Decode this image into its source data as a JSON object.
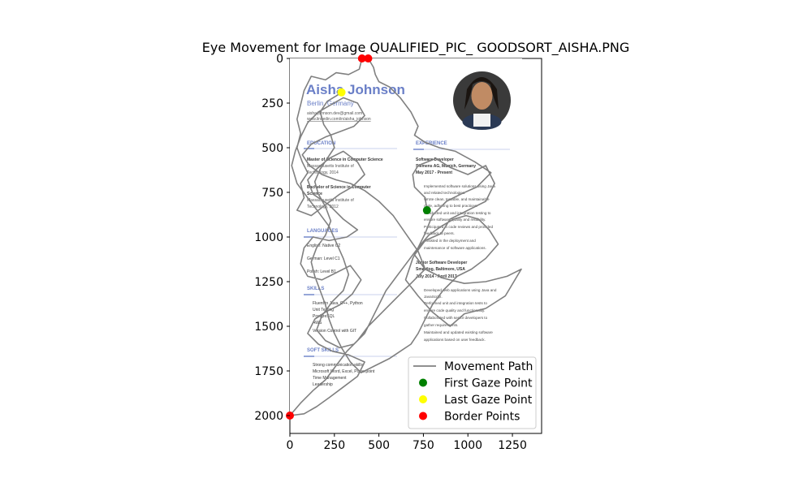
{
  "chart_data": {
    "type": "scatter",
    "title": "Eye Movement for Image QUALIFIED_PIC_ GOODSORT_AISHA.PNG",
    "xlabel": "",
    "ylabel": "",
    "xlim": [
      0,
      1414
    ],
    "ylim": [
      2100,
      0
    ],
    "x_ticks": [
      0,
      250,
      500,
      750,
      1000,
      1250
    ],
    "y_ticks": [
      0,
      250,
      500,
      750,
      1000,
      1250,
      1500,
      1750,
      2000
    ],
    "grid": false,
    "legend_position": "lower-right",
    "colors": {
      "path": "#808080",
      "first": "#008000",
      "last": "#ffff00",
      "border": "#ff0000",
      "cv_accent": "#6a7fc7"
    },
    "legend": [
      {
        "label": "Movement Path",
        "kind": "line",
        "color": "#808080"
      },
      {
        "label": "First Gaze Point",
        "kind": "dot",
        "color": "#008000"
      },
      {
        "label": "Last Gaze Point",
        "kind": "dot",
        "color": "#ffff00"
      },
      {
        "label": "Border Points",
        "kind": "dot",
        "color": "#ff0000"
      }
    ],
    "first_gaze": {
      "x": 770,
      "y": 850
    },
    "last_gaze": {
      "x": 290,
      "y": 190
    },
    "border_points": [
      {
        "x": 405,
        "y": 0
      },
      {
        "x": 440,
        "y": 0
      },
      {
        "x": 0,
        "y": 2000
      }
    ],
    "movement_path": [
      [
        770,
        850
      ],
      [
        760,
        780
      ],
      [
        700,
        720
      ],
      [
        690,
        650
      ],
      [
        720,
        600
      ],
      [
        820,
        560
      ],
      [
        900,
        610
      ],
      [
        1000,
        650
      ],
      [
        1100,
        600
      ],
      [
        1150,
        700
      ],
      [
        1100,
        800
      ],
      [
        980,
        860
      ],
      [
        900,
        900
      ],
      [
        850,
        980
      ],
      [
        760,
        1020
      ],
      [
        700,
        1100
      ],
      [
        760,
        1180
      ],
      [
        860,
        1230
      ],
      [
        980,
        1260
      ],
      [
        1100,
        1250
      ],
      [
        1220,
        1220
      ],
      [
        1300,
        1180
      ],
      [
        1210,
        1330
      ],
      [
        1100,
        1400
      ],
      [
        980,
        1430
      ],
      [
        900,
        1500
      ],
      [
        800,
        1420
      ],
      [
        720,
        1330
      ],
      [
        650,
        1240
      ],
      [
        690,
        1120
      ],
      [
        760,
        980
      ],
      [
        800,
        880
      ],
      [
        880,
        800
      ],
      [
        960,
        760
      ],
      [
        1050,
        720
      ],
      [
        1130,
        640
      ],
      [
        1040,
        580
      ],
      [
        930,
        520
      ],
      [
        840,
        500
      ],
      [
        760,
        470
      ],
      [
        700,
        430
      ],
      [
        720,
        380
      ],
      [
        680,
        300
      ],
      [
        620,
        220
      ],
      [
        560,
        160
      ],
      [
        500,
        130
      ],
      [
        480,
        90
      ],
      [
        470,
        50
      ],
      [
        440,
        0
      ],
      [
        405,
        0
      ],
      [
        390,
        60
      ],
      [
        330,
        90
      ],
      [
        260,
        80
      ],
      [
        200,
        120
      ],
      [
        120,
        100
      ],
      [
        80,
        180
      ],
      [
        60,
        260
      ],
      [
        40,
        340
      ],
      [
        60,
        420
      ],
      [
        40,
        500
      ],
      [
        70,
        580
      ],
      [
        100,
        640
      ],
      [
        60,
        700
      ],
      [
        80,
        780
      ],
      [
        40,
        850
      ],
      [
        120,
        880
      ],
      [
        200,
        820
      ],
      [
        280,
        760
      ],
      [
        350,
        720
      ],
      [
        420,
        650
      ],
      [
        380,
        580
      ],
      [
        300,
        520
      ],
      [
        220,
        560
      ],
      [
        150,
        620
      ],
      [
        100,
        680
      ],
      [
        130,
        760
      ],
      [
        220,
        820
      ],
      [
        300,
        900
      ],
      [
        380,
        960
      ],
      [
        320,
        1000
      ],
      [
        220,
        1020
      ],
      [
        130,
        1000
      ],
      [
        80,
        1060
      ],
      [
        60,
        1150
      ],
      [
        100,
        1220
      ],
      [
        180,
        1240
      ],
      [
        260,
        1200
      ],
      [
        340,
        1160
      ],
      [
        400,
        1240
      ],
      [
        350,
        1320
      ],
      [
        280,
        1380
      ],
      [
        200,
        1420
      ],
      [
        140,
        1460
      ],
      [
        100,
        1540
      ],
      [
        160,
        1600
      ],
      [
        240,
        1640
      ],
      [
        330,
        1660
      ],
      [
        420,
        1700
      ],
      [
        380,
        1780
      ],
      [
        300,
        1840
      ],
      [
        220,
        1900
      ],
      [
        150,
        1950
      ],
      [
        80,
        1990
      ],
      [
        0,
        2000
      ],
      [
        60,
        1930
      ],
      [
        130,
        1860
      ],
      [
        200,
        1800
      ],
      [
        260,
        1720
      ],
      [
        320,
        1640
      ],
      [
        380,
        1580
      ],
      [
        440,
        1500
      ],
      [
        520,
        1420
      ],
      [
        600,
        1340
      ],
      [
        680,
        1260
      ],
      [
        760,
        1180
      ],
      [
        720,
        1080
      ],
      [
        650,
        980
      ],
      [
        580,
        880
      ],
      [
        500,
        800
      ],
      [
        420,
        740
      ],
      [
        340,
        700
      ],
      [
        260,
        680
      ],
      [
        180,
        650
      ],
      [
        110,
        600
      ],
      [
        70,
        540
      ],
      [
        120,
        480
      ],
      [
        200,
        440
      ],
      [
        280,
        410
      ],
      [
        360,
        380
      ],
      [
        420,
        320
      ],
      [
        380,
        250
      ],
      [
        300,
        220
      ],
      [
        230,
        260
      ],
      [
        160,
        300
      ],
      [
        100,
        360
      ],
      [
        60,
        440
      ],
      [
        30,
        520
      ],
      [
        10,
        600
      ],
      [
        40,
        700
      ],
      [
        100,
        780
      ],
      [
        160,
        860
      ],
      [
        220,
        940
      ],
      [
        260,
        1030
      ],
      [
        300,
        1120
      ],
      [
        330,
        1210
      ],
      [
        300,
        1300
      ],
      [
        240,
        1360
      ],
      [
        180,
        1440
      ],
      [
        150,
        1520
      ],
      [
        200,
        1580
      ],
      [
        280,
        1620
      ],
      [
        360,
        1600
      ],
      [
        420,
        1540
      ],
      [
        460,
        1460
      ],
      [
        500,
        1380
      ],
      [
        540,
        1300
      ],
      [
        600,
        1220
      ],
      [
        660,
        1140
      ],
      [
        720,
        1060
      ],
      [
        780,
        990
      ],
      [
        850,
        940
      ],
      [
        920,
        900
      ],
      [
        990,
        880
      ],
      [
        1060,
        900
      ],
      [
        1120,
        960
      ],
      [
        1170,
        1040
      ],
      [
        1100,
        1120
      ],
      [
        1020,
        1180
      ],
      [
        940,
        1220
      ],
      [
        860,
        1300
      ],
      [
        800,
        1380
      ],
      [
        760,
        1460
      ],
      [
        720,
        1540
      ],
      [
        680,
        1600
      ],
      [
        620,
        1640
      ],
      [
        560,
        1680
      ],
      [
        480,
        1720
      ],
      [
        400,
        1760
      ],
      [
        340,
        1700
      ],
      [
        290,
        1620
      ],
      [
        250,
        1540
      ],
      [
        220,
        1460
      ],
      [
        200,
        1380
      ],
      [
        170,
        1300
      ],
      [
        140,
        1220
      ],
      [
        120,
        1140
      ],
      [
        150,
        1060
      ],
      [
        200,
        990
      ],
      [
        230,
        910
      ],
      [
        200,
        830
      ],
      [
        160,
        760
      ],
      [
        140,
        690
      ],
      [
        170,
        620
      ],
      [
        210,
        560
      ],
      [
        250,
        500
      ],
      [
        230,
        430
      ],
      [
        190,
        370
      ],
      [
        170,
        300
      ],
      [
        210,
        240
      ],
      [
        260,
        210
      ],
      [
        290,
        190
      ]
    ]
  },
  "cv": {
    "name": "Aisha Johnson",
    "location": "Berlin, Germany",
    "email": "aisha.johnson.dev@gmail.com",
    "link": "www.linkedin.com/in/aisha_johnson",
    "education_heading": "EDUCATION",
    "edu1_title": "Master of Science in Computer Science",
    "edu1_place": "Massachusetts Institute of",
    "edu1_year": "Technology, 2014",
    "edu2_title": "Bachelor of Science in Computer",
    "edu2_sub": "Science",
    "edu2_place": "Massachusetts Institute of",
    "edu2_year": "Technology, 2012",
    "languages_heading": "LANGUAGES",
    "lang1": "English: Native C2",
    "lang2": "German: Level C1",
    "lang3": "Polish: Level B1",
    "skills_heading": "SKILLS",
    "skill1": "Fluent in Java, C++, Python",
    "skill2": "Unit Testing",
    "skill3": "PostgreSQL",
    "skill4": "AWS",
    "skill5": "Version Control with GIT",
    "soft_heading": "SOFT SKILLS",
    "soft1": "Strong communication skills",
    "soft2": "Microsoft Word, Excel, Powerpoint",
    "soft3": "Time Management",
    "soft4": "Leadership",
    "experience_heading": "EXPERIENCE",
    "job1_title": "Software Developer",
    "job1_company": "Siemens AG, Munich, Germany",
    "job1_dates": "May 2017 - Present",
    "job1_b1": "Implemented software solutions using Java",
    "job1_b1b": "and related technologies.",
    "job1_b2": "Wrote clean, testable, and maintainable",
    "job1_b2b": "code, adhering to best practices.",
    "job1_b3": "Conducted unit and integration testing to",
    "job1_b3b": "ensure software quality and reliability.",
    "job1_b4": "Participated in code reviews and provided",
    "job1_b4b": "feedback to peers.",
    "job1_b5": "Assisted in the deployment and",
    "job1_b5b": "maintenance of software applications.",
    "job2_title": "Junior Software Developer",
    "job2_company": "Smartlog, Baltimore, USA",
    "job2_dates": "July 2014 - April 2017",
    "job2_b1": "Developed web applications using Java and",
    "job2_b1b": "JavaScript.",
    "job2_b2": "Performed unit and integration tests to",
    "job2_b2b": "ensure code quality and functionality.",
    "job2_b3": "Collaborated with senior developers to",
    "job2_b3b": "gather requirements.",
    "job2_b4": "Maintained and updated existing software",
    "job2_b4b": "applications based on user feedback."
  }
}
